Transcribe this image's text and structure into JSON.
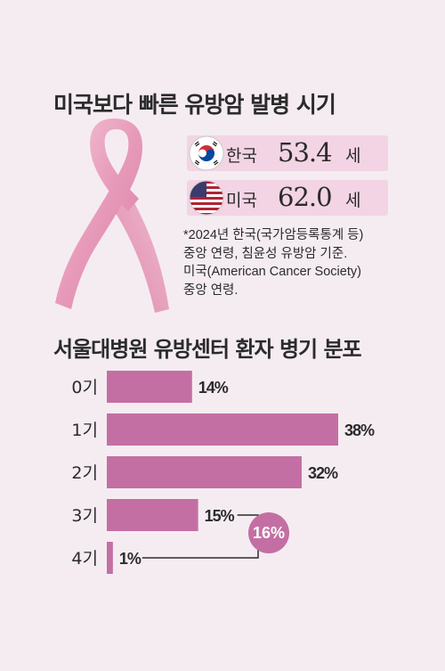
{
  "header": {
    "title": "미국보다 빠른 유방암 발병 시기"
  },
  "onset_age": [
    {
      "country": "한국",
      "age": "53.4",
      "unit": "세",
      "flag": "south-korea-flag"
    },
    {
      "country": "미국",
      "age": "62.0",
      "unit": "세",
      "flag": "united-states-flag"
    }
  ],
  "note": {
    "lines": [
      "*2024년 한국(국가암등록통계 등)",
      "중앙 연령, 침윤성 유방암 기준.",
      "미국(American Cancer Society)",
      "중앙 연령."
    ]
  },
  "chart_title": "서울대병원 유방센터 환자 병기 분포",
  "chart_data": {
    "type": "bar",
    "orientation": "horizontal",
    "title": "서울대병원 유방센터 환자 병기 분포",
    "categories": [
      "0기",
      "1기",
      "2기",
      "3기",
      "4기"
    ],
    "values": [
      14,
      38,
      32,
      15,
      1
    ],
    "value_labels": [
      "14%",
      "38%",
      "32%",
      "15%",
      "1%"
    ],
    "unit": "%",
    "xlim": [
      0,
      38
    ],
    "bar_color": "#c46fa3",
    "grid": false,
    "annotation": {
      "label": "16%",
      "groups": [
        "3기",
        "4기"
      ],
      "color": "#c46fa3"
    }
  },
  "colors": {
    "background": "#f5ecf2",
    "accent_box": "#f2d4e4",
    "ribbon": "#e9a9c3"
  }
}
